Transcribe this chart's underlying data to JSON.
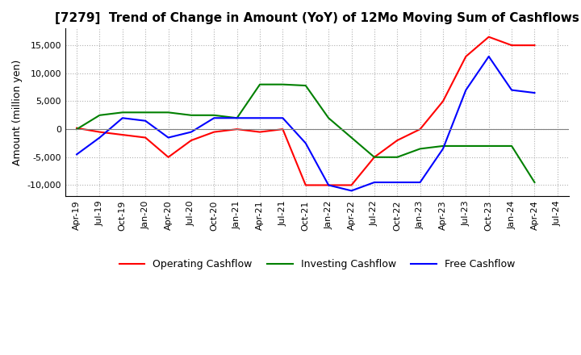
{
  "title": "[7279]  Trend of Change in Amount (YoY) of 12Mo Moving Sum of Cashflows",
  "ylabel": "Amount (million yen)",
  "ylim": [
    -12000,
    18000
  ],
  "yticks": [
    -10000,
    -5000,
    0,
    5000,
    10000,
    15000
  ],
  "x_labels": [
    "Apr-19",
    "Jul-19",
    "Oct-19",
    "Jan-20",
    "Apr-20",
    "Jul-20",
    "Oct-20",
    "Jan-21",
    "Apr-21",
    "Jul-21",
    "Oct-21",
    "Jan-22",
    "Apr-22",
    "Jul-22",
    "Oct-22",
    "Jan-23",
    "Apr-23",
    "Jul-23",
    "Oct-23",
    "Jan-24",
    "Apr-24",
    "Jul-24"
  ],
  "operating": [
    200,
    -500,
    -1000,
    -1500,
    -5000,
    -2000,
    -500,
    0,
    -500,
    0,
    -10000,
    -10000,
    -10000,
    -5000,
    -2000,
    0,
    5000,
    13000,
    16500,
    15000,
    15000,
    null
  ],
  "investing": [
    0,
    2500,
    3000,
    3000,
    3000,
    2500,
    2500,
    2000,
    8000,
    8000,
    7800,
    2000,
    -1500,
    -5000,
    -5000,
    -3500,
    -3000,
    -3000,
    -3000,
    -3000,
    -9500,
    null
  ],
  "free": [
    -4500,
    -1500,
    2000,
    1500,
    -1500,
    -500,
    2000,
    2000,
    2000,
    2000,
    -2500,
    -10000,
    -11000,
    -9500,
    -9500,
    -9500,
    -3500,
    7000,
    13000,
    7000,
    6500,
    null
  ],
  "colors": {
    "operating": "#ff0000",
    "investing": "#008000",
    "free": "#0000ff"
  },
  "legend_labels": [
    "Operating Cashflow",
    "Investing Cashflow",
    "Free Cashflow"
  ],
  "grid_color": "#b0b0b0",
  "grid_style": "dotted",
  "background_color": "#ffffff",
  "figsize": [
    7.2,
    4.4
  ],
  "dpi": 100
}
